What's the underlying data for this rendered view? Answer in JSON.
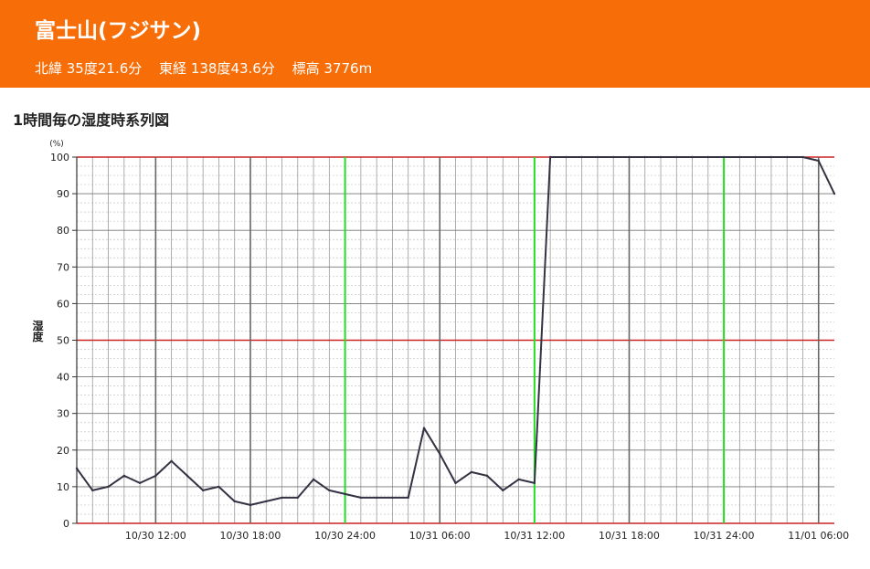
{
  "header": {
    "station_name": "富士山(フジサン)",
    "latitude": "北緯 35度21.6分",
    "longitude": "東経 138度43.6分",
    "altitude": "標高 3776m"
  },
  "colors": {
    "header_bg": "#f76d07",
    "line": "#333344",
    "grid_major_h": "#cc2222",
    "day_line": "#22dd22",
    "six_hour_line": "#666666"
  },
  "chart_data": {
    "type": "line",
    "title": "1時間毎の湿度時系列図",
    "ylabel": "湿度",
    "yunit": "(%)",
    "ylim": [
      0,
      100
    ],
    "yticks": [
      0,
      10,
      20,
      30,
      40,
      50,
      60,
      70,
      80,
      90,
      100
    ],
    "xlim": [
      "10/30 07:00",
      "11/01 07:00"
    ],
    "xtick_labels": [
      "10/30 12:00",
      "10/30 18:00",
      "10/30 24:00",
      "10/31 06:00",
      "10/31 12:00",
      "10/31 18:00",
      "10/31 24:00",
      "11/01 06:00"
    ],
    "grid": true,
    "x": [
      "10/30 07:00",
      "10/30 08:00",
      "10/30 09:00",
      "10/30 10:00",
      "10/30 11:00",
      "10/30 12:00",
      "10/30 13:00",
      "10/30 14:00",
      "10/30 15:00",
      "10/30 16:00",
      "10/30 17:00",
      "10/30 18:00",
      "10/30 19:00",
      "10/30 20:00",
      "10/30 21:00",
      "10/30 22:00",
      "10/30 23:00",
      "10/30 24:00",
      "10/31 01:00",
      "10/31 02:00",
      "10/31 03:00",
      "10/31 04:00",
      "10/31 05:00",
      "10/31 06:00",
      "10/31 07:00",
      "10/31 08:00",
      "10/31 09:00",
      "10/31 10:00",
      "10/31 11:00",
      "10/31 12:00",
      "10/31 13:00",
      "10/31 14:00",
      "10/31 15:00",
      "10/31 16:00",
      "10/31 17:00",
      "10/31 18:00",
      "10/31 19:00",
      "10/31 20:00",
      "10/31 21:00",
      "10/31 22:00",
      "10/31 23:00",
      "10/31 24:00",
      "11/01 01:00",
      "11/01 02:00",
      "11/01 03:00",
      "11/01 04:00",
      "11/01 05:00",
      "11/01 06:00",
      "11/01 07:00"
    ],
    "series": [
      {
        "values": [
          15,
          9,
          10,
          13,
          11,
          13,
          17,
          13,
          9,
          10,
          6,
          5,
          6,
          7,
          7,
          12,
          9,
          8,
          7,
          7,
          7,
          7,
          26,
          19,
          11,
          14,
          13,
          9,
          12,
          11,
          100,
          100,
          100,
          100,
          100,
          100,
          100,
          100,
          100,
          100,
          100,
          100,
          100,
          100,
          100,
          100,
          100,
          99,
          90
        ]
      }
    ]
  }
}
